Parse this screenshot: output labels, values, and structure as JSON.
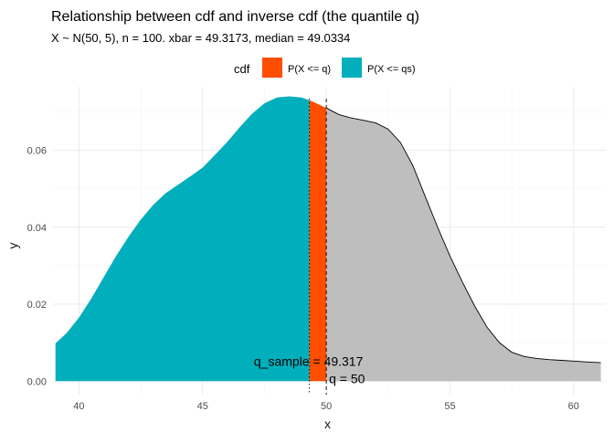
{
  "chart_data": {
    "type": "area",
    "title": "Relationship between cdf and inverse cdf (the quantile q)",
    "subtitle": "X ~ N(50, 5), n = 100. xbar = 49.3173, median = 49.0334",
    "xlabel": "x",
    "ylabel": "y",
    "xlim": [
      38.95,
      61.3
    ],
    "ylim": [
      -0.0035,
      0.0765
    ],
    "x_ticks": [
      40,
      45,
      50,
      55,
      60
    ],
    "y_ticks": [
      0.0,
      0.02,
      0.04,
      0.06
    ],
    "grid": true,
    "legend": {
      "title": "cdf",
      "position": "top",
      "entries": [
        {
          "label": "P(X <= q)",
          "color": "#FF4E00"
        },
        {
          "label": "P(X <= qs)",
          "color": "#00AFBB"
        }
      ]
    },
    "density": {
      "x": [
        39.05,
        39.5,
        40.0,
        40.5,
        41.0,
        41.5,
        42.0,
        42.5,
        43.0,
        43.5,
        44.0,
        44.5,
        45.0,
        45.5,
        46.0,
        46.5,
        47.0,
        47.5,
        48.0,
        48.5,
        49.0,
        49.317,
        49.5,
        50.0,
        50.5,
        51.0,
        51.5,
        52.0,
        52.5,
        53.0,
        53.5,
        54.0,
        54.5,
        55.0,
        55.5,
        56.0,
        56.5,
        57.0,
        57.5,
        58.0,
        58.5,
        59.0,
        59.5,
        60.0,
        60.5,
        61.1
      ],
      "y": [
        0.0098,
        0.0125,
        0.0165,
        0.0215,
        0.027,
        0.0325,
        0.0375,
        0.042,
        0.0458,
        0.0488,
        0.051,
        0.0532,
        0.0555,
        0.0588,
        0.0622,
        0.066,
        0.0695,
        0.0722,
        0.0737,
        0.074,
        0.0737,
        0.073,
        0.0725,
        0.071,
        0.0693,
        0.0684,
        0.0678,
        0.0671,
        0.0655,
        0.062,
        0.056,
        0.048,
        0.04,
        0.0325,
        0.0258,
        0.0195,
        0.014,
        0.01,
        0.0075,
        0.0064,
        0.0059,
        0.0056,
        0.0054,
        0.0052,
        0.005,
        0.0048
      ]
    },
    "region_colors": {
      "qs": "#00AFBB",
      "q": "#FF4E00",
      "rest": "#BEBEBE",
      "outline": "#000000"
    },
    "q_sample": 49.317,
    "q": 50,
    "annotations": {
      "q_sample_label": "q_sample = 49.317",
      "q_label": "q = 50"
    }
  }
}
